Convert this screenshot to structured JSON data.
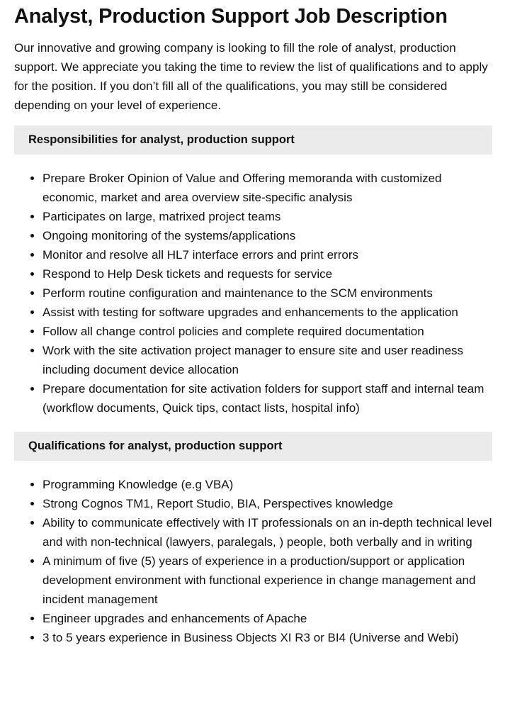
{
  "title": "Analyst, Production Support Job Description",
  "intro": "Our innovative and growing company is looking to fill the role of analyst, production support. We appreciate you taking the time to review the list of qualifications and to apply for the position. If you don’t fill all of the qualifications, you may still be considered depending on your level of experience.",
  "responsibilities": {
    "heading": "Responsibilities for analyst, production support",
    "items": [
      "Prepare Broker Opinion of Value and Offering memoranda with customized economic, market and area overview site-specific analysis",
      "Participates on large, matrixed project teams",
      "Ongoing monitoring of the systems/applications",
      "Monitor and resolve all HL7 interface errors and print errors",
      "Respond to Help Desk tickets and requests for service",
      "Perform routine configuration and maintenance to the SCM environments",
      "Assist with testing for software upgrades and enhancements to the application",
      "Follow all change control policies and complete required documentation",
      "Work with the site activation project manager to ensure site and user readiness including document device allocation",
      "Prepare documentation for site activation folders for support staff and internal team (workflow documents, Quick tips, contact lists, hospital info)"
    ]
  },
  "qualifications": {
    "heading": "Qualifications for analyst, production support",
    "items": [
      "Programming Knowledge (e.g VBA)",
      "Strong Cognos TM1, Report Studio, BIA, Perspectives knowledge",
      "Ability to communicate effectively with IT professionals on an in-depth technical level and with non-technical (lawyers, paralegals, ) people, both verbally and in writing",
      "A minimum of five (5) years of experience in a production/support or application development environment with functional experience in change management and incident management",
      "Engineer upgrades and enhancements of Apache",
      "3 to 5 years experience in Business Objects XI R3 or BI4 (Universe and Webi)"
    ]
  }
}
